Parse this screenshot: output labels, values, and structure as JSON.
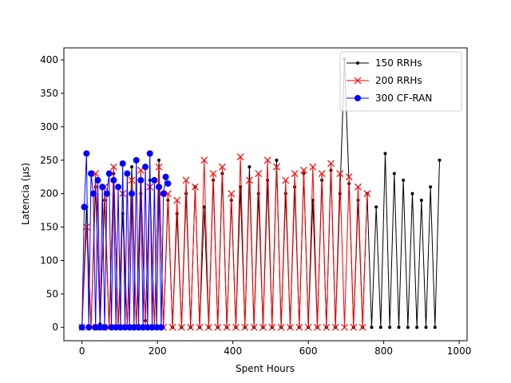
{
  "chart_data": {
    "type": "line",
    "xlabel": "Spent Hours",
    "ylabel": "Latencia (µs)",
    "xlim": [
      -48,
      1021
    ],
    "ylim": [
      -20,
      418
    ],
    "xticks": [
      0,
      200,
      400,
      600,
      800,
      1000
    ],
    "yticks": [
      0,
      50,
      100,
      150,
      200,
      250,
      300,
      350,
      400
    ],
    "grid": false,
    "legend": "upper right",
    "series": [
      {
        "name": "150 RRHs",
        "color": "#000000",
        "marker": "dot",
        "x": [
          0,
          12,
          24,
          36,
          48,
          60,
          72,
          84,
          96,
          108,
          120,
          132,
          144,
          156,
          168,
          180,
          192,
          204,
          216,
          228,
          240,
          252,
          264,
          276,
          288,
          300,
          312,
          324,
          336,
          348,
          360,
          372,
          384,
          396,
          408,
          420,
          432,
          444,
          456,
          468,
          480,
          492,
          504,
          516,
          528,
          540,
          552,
          564,
          576,
          588,
          600,
          612,
          624,
          636,
          648,
          660,
          672,
          684,
          696,
          708,
          720,
          732,
          744,
          756,
          768,
          780,
          792,
          804,
          816,
          828,
          840,
          852,
          864,
          876,
          888,
          900,
          912,
          924,
          936,
          948
        ],
        "values": [
          0,
          180,
          0,
          210,
          5,
          190,
          0,
          230,
          0,
          170,
          0,
          240,
          0,
          200,
          10,
          220,
          0,
          250,
          0,
          190,
          0,
          170,
          0,
          200,
          0,
          210,
          0,
          180,
          0,
          220,
          0,
          230,
          0,
          190,
          0,
          210,
          0,
          240,
          0,
          200,
          0,
          220,
          0,
          250,
          0,
          200,
          0,
          210,
          0,
          230,
          0,
          190,
          0,
          220,
          0,
          235,
          0,
          200,
          401,
          215,
          0,
          190,
          0,
          200,
          0,
          180,
          0,
          260,
          0,
          230,
          0,
          220,
          0,
          200,
          0,
          190,
          0,
          210,
          0,
          250
        ]
      },
      {
        "name": "200 RRHs",
        "color": "#ff0000",
        "marker": "x",
        "x": [
          0,
          12,
          24,
          36,
          48,
          60,
          72,
          84,
          96,
          108,
          120,
          132,
          144,
          156,
          168,
          180,
          192,
          204,
          216,
          228,
          240,
          252,
          264,
          276,
          288,
          300,
          312,
          324,
          336,
          348,
          360,
          372,
          384,
          396,
          408,
          420,
          432,
          444,
          456,
          468,
          480,
          492,
          504,
          516,
          528,
          540,
          552,
          564,
          576,
          588,
          600,
          612,
          624,
          636,
          648,
          660,
          672,
          684,
          696,
          708,
          720,
          732,
          744,
          756
        ],
        "values": [
          0,
          150,
          0,
          230,
          0,
          210,
          0,
          240,
          0,
          200,
          0,
          220,
          0,
          235,
          0,
          210,
          0,
          240,
          0,
          200,
          0,
          190,
          0,
          220,
          0,
          210,
          0,
          250,
          0,
          230,
          0,
          240,
          0,
          200,
          0,
          255,
          0,
          220,
          0,
          230,
          0,
          250,
          0,
          240,
          0,
          220,
          0,
          230,
          0,
          235,
          0,
          240,
          0,
          230,
          0,
          245,
          0,
          230,
          0,
          225,
          0,
          210,
          0,
          200
        ]
      },
      {
        "name": "300 CF-RAN",
        "color": "#0000ff",
        "marker": "circle",
        "x": [
          0,
          6,
          12,
          18,
          24,
          30,
          36,
          42,
          48,
          54,
          60,
          66,
          72,
          78,
          84,
          90,
          96,
          102,
          108,
          114,
          120,
          126,
          132,
          138,
          144,
          150,
          156,
          162,
          168,
          174,
          180,
          186,
          192,
          198,
          204,
          210,
          216,
          222,
          228
        ],
        "values": [
          0,
          180,
          260,
          0,
          230,
          200,
          0,
          220,
          0,
          210,
          0,
          200,
          230,
          0,
          220,
          0,
          210,
          0,
          245,
          0,
          230,
          0,
          200,
          0,
          250,
          0,
          220,
          0,
          240,
          0,
          260,
          0,
          220,
          0,
          210,
          0,
          200,
          225,
          215
        ]
      }
    ]
  }
}
